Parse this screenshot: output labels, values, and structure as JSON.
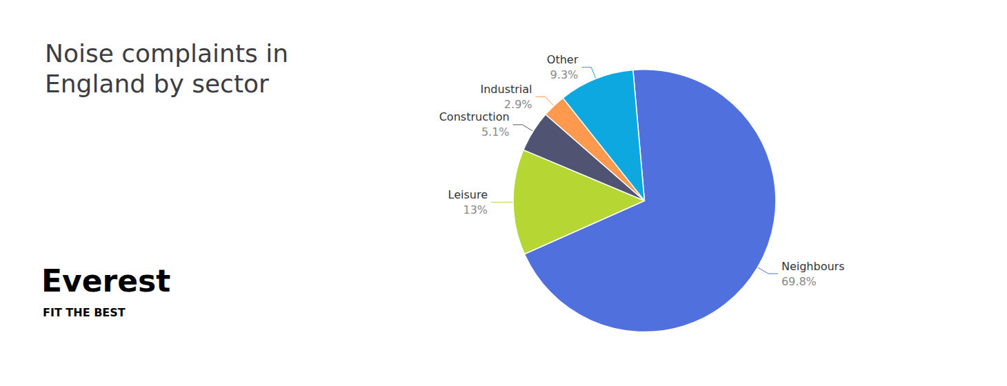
{
  "chart_data": {
    "type": "pie",
    "title": "Noise complaints in\nEngland by sector",
    "categories": [
      "Neighbours",
      "Leisure",
      "Construction",
      "Industrial",
      "Other"
    ],
    "values": [
      69.8,
      13,
      5.1,
      2.9,
      9.3
    ],
    "value_labels": [
      "69.8%",
      "13%",
      "5.1%",
      "2.9%",
      "9.3%"
    ],
    "data_labels": true,
    "annotations": [
      "Everest",
      "FIT THE BEST"
    ]
  }
}
